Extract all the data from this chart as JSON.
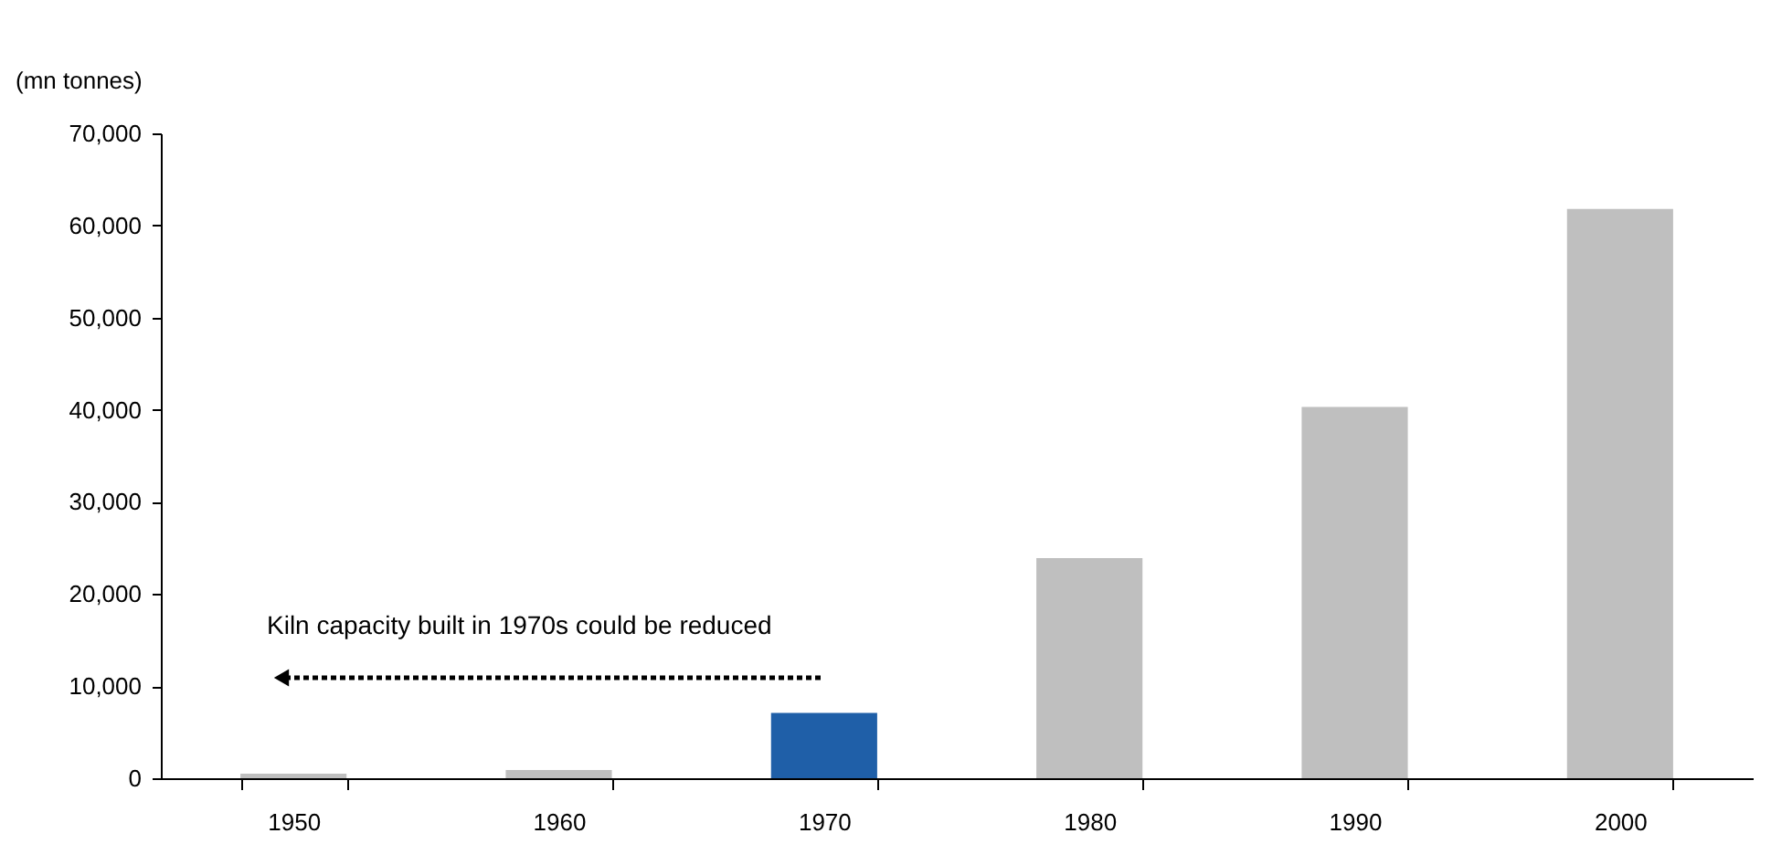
{
  "chart_data": {
    "type": "bar",
    "ylabel": "(mn tonnes)",
    "categories": [
      "1950",
      "1960",
      "1970",
      "1980",
      "1990",
      "2000"
    ],
    "values": [
      500,
      900,
      7100,
      23900,
      40300,
      61800
    ],
    "colors": [
      "#bfbfbf",
      "#bfbfbf",
      "#1f5fa8",
      "#bfbfbf",
      "#bfbfbf",
      "#bfbfbf"
    ],
    "ylim": [
      0,
      70000
    ],
    "yticks": [
      0,
      {
        "value": 10000,
        "label": "10,000"
      },
      {
        "value": 20000,
        "label": "20,000"
      },
      {
        "value": 30000,
        "label": "30,000"
      },
      {
        "value": 40000,
        "label": "40,000"
      },
      {
        "value": 50000,
        "label": "50,000"
      },
      {
        "value": 60000,
        "label": "60,000"
      },
      {
        "value": 70000,
        "label": "70,000"
      }
    ],
    "grid": false,
    "annotations": [
      "Kiln capacity built in 1970s could be reduced"
    ]
  }
}
